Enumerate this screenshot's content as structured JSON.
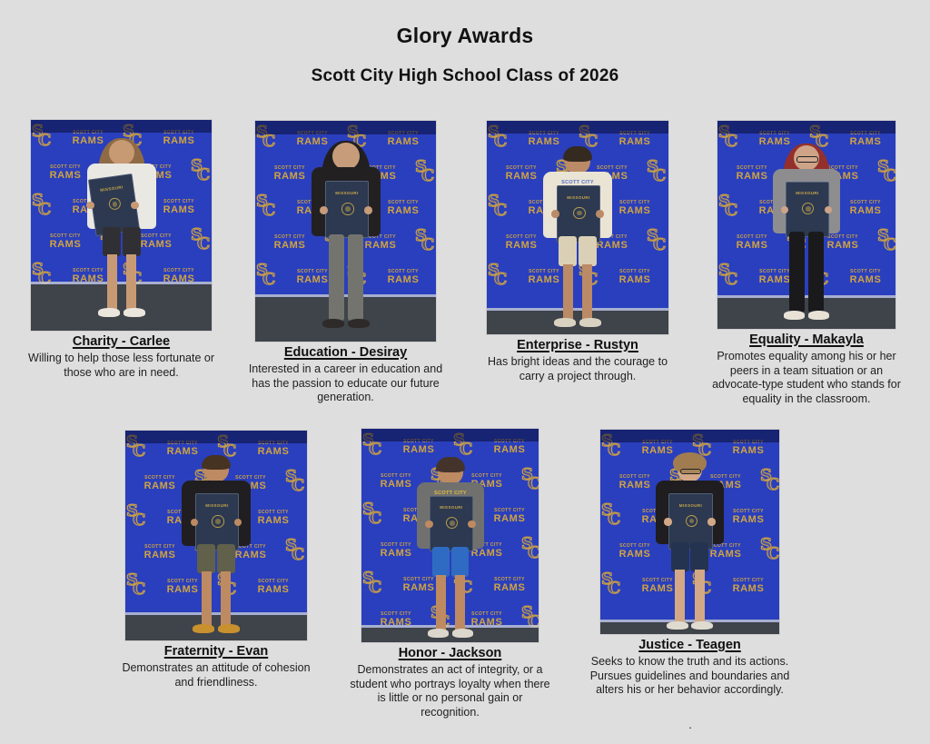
{
  "page": {
    "title": "Glory Awards",
    "subtitle": "Scott City High School Class of 2026",
    "background": "#dedede",
    "footnote_dot": "."
  },
  "backdrop": {
    "school_name": "SCOTT CITY",
    "team_name": "RAMS",
    "monogram_letters": "SC",
    "blue": "#2a3fbd",
    "top_wall_shade": "rgba(8,13,55,0.55)",
    "gold": "#d9a93a",
    "floor_carpet": "#3f434a",
    "edge_strip": "#c7ccd4",
    "folder_navy": "#2c3950",
    "folder_label": "MISSOURI",
    "folder_seal_gold": "#c9a74b"
  },
  "awards": [
    {
      "title": "Charity - Carlee",
      "description": "Willing to help those less fortunate or those who are in need.",
      "appearance": {
        "skin": "#c89a74",
        "hair": "#8f6b45",
        "hair_style": "long",
        "top": "#eae8e2",
        "bottom": "#303034",
        "legs": "shorts",
        "shoes": "#eae6dd",
        "folder_dx": -10,
        "folder_tilt": -8
      }
    },
    {
      "title": "Education - Desiray",
      "description": "Interested in a career in education and has the passion to educate our future generation.",
      "appearance": {
        "skin": "#c69c7b",
        "hair": "#221f20",
        "hair_style": "long",
        "top": "#232021",
        "bottom": "#73746e",
        "legs": "pants",
        "shoes": "#2e2a2a"
      }
    },
    {
      "title": "Enterprise - Rustyn",
      "description": "Has bright ideas and the courage to carry a project through.",
      "appearance": {
        "skin": "#bb8a66",
        "hair": "#352a20",
        "hair_style": "short",
        "top": "#e9e4d4",
        "bottom": "#d9d0b6",
        "legs": "shorts",
        "shoes": "#d9d2c0",
        "top_text": "SCOTT CITY",
        "top_text_color": "#5470c4"
      }
    },
    {
      "title": "Equality - Makayla",
      "description": "Promotes equality among his or her peers in a team situation or an advocate-type student who stands for equality in the classroom.",
      "appearance": {
        "skin": "#cfa387",
        "hair": "#93302b",
        "hair_style": "long",
        "top": "#8d8d90",
        "bottom": "#1a1a1d",
        "legs": "pants",
        "shoes": "#e7e1d6",
        "glasses": true
      }
    },
    {
      "title": "Fraternity - Evan",
      "description": "Demonstrates an attitude of cohesion and friendliness.",
      "appearance": {
        "skin": "#bd8a62",
        "hair": "#463321",
        "hair_style": "short",
        "top": "#201e20",
        "bottom": "#60604b",
        "legs": "shorts",
        "shoes": "#c8912e"
      }
    },
    {
      "title": "Honor - Jackson",
      "description": "Demonstrates an act of integrity, or a student who portrays loyalty when there is little or no personal gain or recognition.",
      "appearance": {
        "skin": "#bd8a62",
        "hair": "#44332a",
        "hair_style": "short",
        "top": "#70716f",
        "bottom": "#2f6bc2",
        "legs": "shorts",
        "shoes": "#dcd7cc",
        "top_text": "SCOTT CITY",
        "top_text_color": "#e5bb3f"
      }
    },
    {
      "title": "Justice - Teagen",
      "description": "Seeks to know the truth and its actions. Pursues guidelines and boundaries and alters his or her behavior accordingly.",
      "appearance": {
        "skin": "#d2a886",
        "hair": "#a07c50",
        "hair_style": "curly",
        "top": "#1f1d20",
        "bottom": "#243450",
        "legs": "shorts",
        "shoes": "#e0dbd0",
        "glasses": true
      }
    }
  ]
}
